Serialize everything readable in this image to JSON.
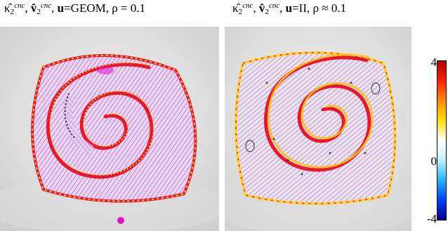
{
  "captions": {
    "left": {
      "kappa": "κ̂",
      "kappa_sub": "2",
      "kappa_sup": "cnc",
      "v": "v̂",
      "v_sub": "2",
      "v_sup": "cnc",
      "u_bold": "u",
      "u_value": "GEOM",
      "rho_text": "ρ = 0.1"
    },
    "right": {
      "kappa": "κ̂",
      "kappa_sub": "2",
      "kappa_sup": "cnc",
      "v": "v̂",
      "v_sub": "2",
      "v_sup": "cnc",
      "u_bold": "u",
      "u_value": "II",
      "rho_text": "ρ ≈ 0.1"
    }
  },
  "colorbar": {
    "max_label": "4",
    "mid_label": "0",
    "min_label": "-4",
    "stops": [
      "#b40000",
      "#ff2000",
      "#ff8c00",
      "#ffe000",
      "#ffffff",
      "#c0f0ff",
      "#20b8ff",
      "#0040ff",
      "#00008c"
    ]
  },
  "colors": {
    "surface": "#e2cdf0",
    "edge_hot": "#e8182a",
    "edge_warm": "#ffd040",
    "hatch_left": "#b23bc4",
    "hatch_right": "#7a6a9a",
    "marker_dot": "#e010d0"
  }
}
